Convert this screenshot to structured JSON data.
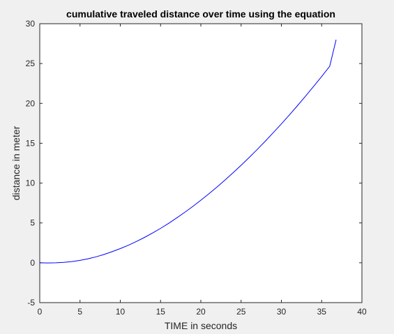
{
  "chart_data": {
    "type": "line",
    "title": "cumulative traveled distance over time using the equation",
    "xlabel": "TIME in seconds",
    "ylabel": "distance in meter",
    "xlim": [
      0,
      40
    ],
    "ylim": [
      -5,
      30
    ],
    "xticks": [
      0,
      5,
      10,
      15,
      20,
      25,
      30,
      35,
      40
    ],
    "yticks": [
      -5,
      0,
      5,
      10,
      15,
      20,
      25,
      30
    ],
    "grid": false,
    "series": [
      {
        "color": "#0000ff",
        "x": [
          0,
          1,
          2,
          3,
          4,
          5,
          6,
          7,
          8,
          9,
          10,
          11,
          12,
          13,
          14,
          15,
          16,
          17,
          18,
          19,
          20,
          21,
          22,
          23,
          24,
          25,
          26,
          27,
          28,
          29,
          30,
          31,
          32,
          33,
          34,
          35,
          36,
          36.8
        ],
        "y": [
          0,
          -0.02,
          0,
          0.05,
          0.15,
          0.3,
          0.5,
          0.75,
          1.05,
          1.4,
          1.78,
          2.2,
          2.67,
          3.18,
          3.73,
          4.32,
          4.95,
          5.62,
          6.33,
          7.07,
          7.85,
          8.66,
          9.5,
          10.38,
          11.29,
          12.24,
          13.21,
          14.22,
          15.26,
          16.33,
          17.43,
          18.56,
          19.72,
          20.91,
          22.13,
          23.38,
          24.66,
          28.0
        ]
      }
    ]
  }
}
